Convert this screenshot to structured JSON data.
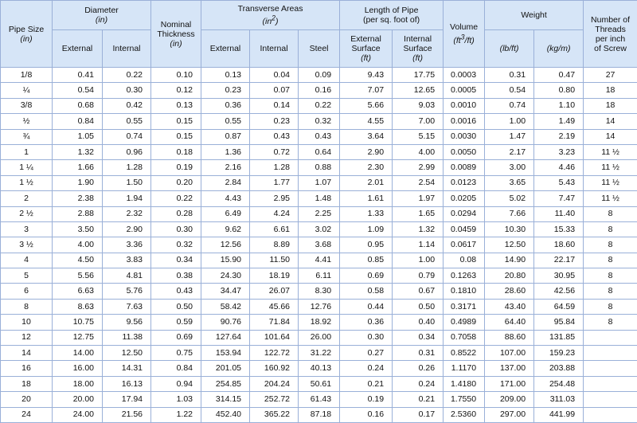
{
  "headers": {
    "pipe_size": "Pipe Size",
    "pipe_size_unit": "(in)",
    "diameter": "Diameter",
    "diameter_unit": "(in)",
    "external": "External",
    "internal": "Internal",
    "nominal": "Nominal",
    "thickness": "Thickness",
    "thickness_unit": "(in)",
    "transverse": "Transverse Areas",
    "transverse_unit_base": "(in",
    "transverse_unit_sup": "2",
    "transverse_unit_end": ")",
    "steel": "Steel",
    "length": "Length of Pipe",
    "length_sub": "(per sq. foot of)",
    "external_surface_1": "External",
    "external_surface_2": "Surface",
    "surface_unit": "(ft)",
    "internal_surface_1": "Internal",
    "internal_surface_2": "Surface",
    "volume": "Volume",
    "volume_unit_base": "(ft",
    "volume_unit_sup": "3",
    "volume_unit_end": "/ft)",
    "weight": "Weight",
    "lb_ft": "(lb/ft)",
    "kg_m": "(kg/m)",
    "threads_1": "Number of",
    "threads_2": "Threads",
    "threads_3": "per inch",
    "threads_4": "of Screw"
  },
  "rows": [
    [
      "1/8",
      "0.41",
      "0.22",
      "0.10",
      "0.13",
      "0.04",
      "0.09",
      "9.43",
      "17.75",
      "0.0003",
      "0.31",
      "0.47",
      "27"
    ],
    [
      "¼",
      "0.54",
      "0.30",
      "0.12",
      "0.23",
      "0.07",
      "0.16",
      "7.07",
      "12.65",
      "0.0005",
      "0.54",
      "0.80",
      "18"
    ],
    [
      "3/8",
      "0.68",
      "0.42",
      "0.13",
      "0.36",
      "0.14",
      "0.22",
      "5.66",
      "9.03",
      "0.0010",
      "0.74",
      "1.10",
      "18"
    ],
    [
      "½",
      "0.84",
      "0.55",
      "0.15",
      "0.55",
      "0.23",
      "0.32",
      "4.55",
      "7.00",
      "0.0016",
      "1.00",
      "1.49",
      "14"
    ],
    [
      "¾",
      "1.05",
      "0.74",
      "0.15",
      "0.87",
      "0.43",
      "0.43",
      "3.64",
      "5.15",
      "0.0030",
      "1.47",
      "2.19",
      "14"
    ],
    [
      "1",
      "1.32",
      "0.96",
      "0.18",
      "1.36",
      "0.72",
      "0.64",
      "2.90",
      "4.00",
      "0.0050",
      "2.17",
      "3.23",
      "11 ½"
    ],
    [
      "1 ¼",
      "1.66",
      "1.28",
      "0.19",
      "2.16",
      "1.28",
      "0.88",
      "2.30",
      "2.99",
      "0.0089",
      "3.00",
      "4.46",
      "11 ½"
    ],
    [
      "1 ½",
      "1.90",
      "1.50",
      "0.20",
      "2.84",
      "1.77",
      "1.07",
      "2.01",
      "2.54",
      "0.0123",
      "3.65",
      "5.43",
      "11 ½"
    ],
    [
      "2",
      "2.38",
      "1.94",
      "0.22",
      "4.43",
      "2.95",
      "1.48",
      "1.61",
      "1.97",
      "0.0205",
      "5.02",
      "7.47",
      "11 ½"
    ],
    [
      "2 ½",
      "2.88",
      "2.32",
      "0.28",
      "6.49",
      "4.24",
      "2.25",
      "1.33",
      "1.65",
      "0.0294",
      "7.66",
      "11.40",
      "8"
    ],
    [
      "3",
      "3.50",
      "2.90",
      "0.30",
      "9.62",
      "6.61",
      "3.02",
      "1.09",
      "1.32",
      "0.0459",
      "10.30",
      "15.33",
      "8"
    ],
    [
      "3 ½",
      "4.00",
      "3.36",
      "0.32",
      "12.56",
      "8.89",
      "3.68",
      "0.95",
      "1.14",
      "0.0617",
      "12.50",
      "18.60",
      "8"
    ],
    [
      "4",
      "4.50",
      "3.83",
      "0.34",
      "15.90",
      "11.50",
      "4.41",
      "0.85",
      "1.00",
      "0.08",
      "14.90",
      "22.17",
      "8"
    ],
    [
      "5",
      "5.56",
      "4.81",
      "0.38",
      "24.30",
      "18.19",
      "6.11",
      "0.69",
      "0.79",
      "0.1263",
      "20.80",
      "30.95",
      "8"
    ],
    [
      "6",
      "6.63",
      "5.76",
      "0.43",
      "34.47",
      "26.07",
      "8.30",
      "0.58",
      "0.67",
      "0.1810",
      "28.60",
      "42.56",
      "8"
    ],
    [
      "8",
      "8.63",
      "7.63",
      "0.50",
      "58.42",
      "45.66",
      "12.76",
      "0.44",
      "0.50",
      "0.3171",
      "43.40",
      "64.59",
      "8"
    ],
    [
      "10",
      "10.75",
      "9.56",
      "0.59",
      "90.76",
      "71.84",
      "18.92",
      "0.36",
      "0.40",
      "0.4989",
      "64.40",
      "95.84",
      "8"
    ],
    [
      "12",
      "12.75",
      "11.38",
      "0.69",
      "127.64",
      "101.64",
      "26.00",
      "0.30",
      "0.34",
      "0.7058",
      "88.60",
      "131.85",
      ""
    ],
    [
      "14",
      "14.00",
      "12.50",
      "0.75",
      "153.94",
      "122.72",
      "31.22",
      "0.27",
      "0.31",
      "0.8522",
      "107.00",
      "159.23",
      ""
    ],
    [
      "16",
      "16.00",
      "14.31",
      "0.84",
      "201.05",
      "160.92",
      "40.13",
      "0.24",
      "0.26",
      "1.1170",
      "137.00",
      "203.88",
      ""
    ],
    [
      "18",
      "18.00",
      "16.13",
      "0.94",
      "254.85",
      "204.24",
      "50.61",
      "0.21",
      "0.24",
      "1.4180",
      "171.00",
      "254.48",
      ""
    ],
    [
      "20",
      "20.00",
      "17.94",
      "1.03",
      "314.15",
      "252.72",
      "61.43",
      "0.19",
      "0.21",
      "1.7550",
      "209.00",
      "311.03",
      ""
    ],
    [
      "24",
      "24.00",
      "21.56",
      "1.22",
      "452.40",
      "365.22",
      "87.18",
      "0.16",
      "0.17",
      "2.5360",
      "297.00",
      "441.99",
      ""
    ]
  ]
}
